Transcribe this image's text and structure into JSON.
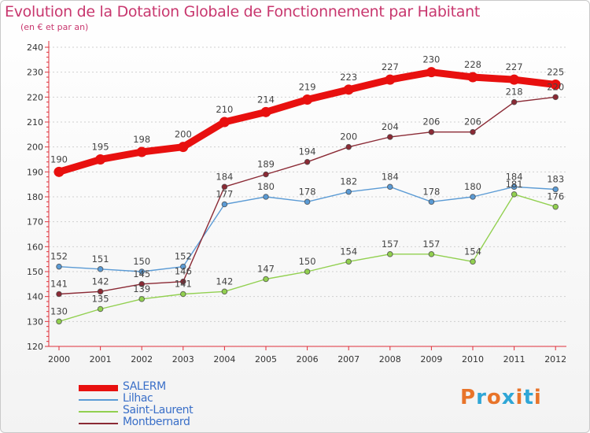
{
  "title": "Evolution de la Dotation Globale de Fonctionnement par Habitant",
  "subtitle": "(en € et par an)",
  "logo": {
    "text": "Proxiti",
    "colors": [
      "#e8742a",
      "#2fa6d6",
      "#e8742a",
      "#2fa6d6",
      "#e8742a",
      "#2fa6d6",
      "#e8742a"
    ]
  },
  "chart_data": {
    "type": "line",
    "title": "Evolution de la Dotation Globale de Fonctionnement par Habitant",
    "subtitle": "(en € et par an)",
    "x": [
      "2000",
      "2001",
      "2002",
      "2003",
      "2004",
      "2005",
      "2006",
      "2007",
      "2008",
      "2009",
      "2010",
      "2011",
      "2012"
    ],
    "ylim": [
      120,
      240
    ],
    "yticks": [
      120,
      130,
      140,
      150,
      160,
      170,
      180,
      190,
      200,
      210,
      220,
      230,
      240
    ],
    "series": [
      {
        "name": "SALERM",
        "color": "#e8100f",
        "values": [
          190,
          195,
          198,
          200,
          210,
          214,
          219,
          223,
          227,
          230,
          228,
          227,
          225
        ]
      },
      {
        "name": "Lilhac",
        "color": "#5b9bd5",
        "values": [
          152,
          151,
          150,
          152,
          177,
          180,
          178,
          182,
          184,
          178,
          180,
          184,
          183
        ]
      },
      {
        "name": "Saint-Laurent",
        "color": "#92d050",
        "values": [
          130,
          135,
          139,
          141,
          142,
          147,
          150,
          154,
          157,
          157,
          154,
          181,
          176
        ]
      },
      {
        "name": "Montbernard",
        "color": "#8b2a35",
        "values": [
          141,
          142,
          145,
          146,
          184,
          189,
          194,
          200,
          204,
          206,
          206,
          218,
          220
        ]
      }
    ]
  }
}
